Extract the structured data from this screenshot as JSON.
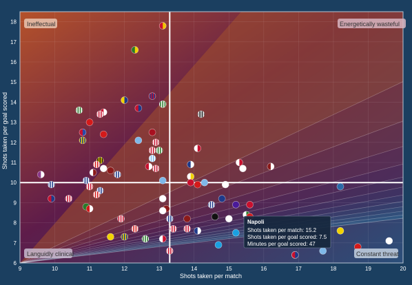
{
  "chart_data": {
    "type": "scatter",
    "xlabel": "Shots taken per match",
    "ylabel": "Shots taken per goal scored",
    "xlim": [
      9,
      20
    ],
    "ylim": [
      6,
      18.5
    ],
    "xticks": [
      9,
      10,
      11,
      12,
      13,
      14,
      15,
      16,
      17,
      18,
      19,
      20
    ],
    "yticks": [
      6,
      7,
      8,
      9,
      10,
      11,
      12,
      13,
      14,
      15,
      16,
      17,
      18
    ],
    "grid": true,
    "reference_lines": {
      "x": 13.3,
      "y": 10.0
    },
    "quadrant_labels": {
      "top_left": "Ineffectual",
      "top_right": "Energetically wasteful",
      "bottom_left": "Languidly clinical",
      "bottom_right": "Constant threat"
    },
    "tooltip": {
      "title": "Napoli",
      "lines": [
        "Shots taken per match: 15.2",
        "Shots taken per goal scored: 7.5",
        "Minutes per goal scored: 47"
      ],
      "x": 15.2,
      "y": 7.5
    },
    "points": [
      {
        "x": 13.1,
        "y": 17.8,
        "c1": "#c8102e",
        "c2": "#f2c300",
        "style": "split"
      },
      {
        "x": 12.3,
        "y": 16.6,
        "c1": "#2a7a2a",
        "c2": "#f2d200",
        "style": "split"
      },
      {
        "x": 12.8,
        "y": 14.3,
        "c1": "#c8102e",
        "c2": "#1e3a8a",
        "style": "stripes"
      },
      {
        "x": 12.0,
        "y": 14.1,
        "c1": "#f2d200",
        "c2": "#1e3a8a",
        "style": "split"
      },
      {
        "x": 13.1,
        "y": 13.9,
        "c1": "#ffffff",
        "c2": "#2a7a2a",
        "style": "stripes"
      },
      {
        "x": 12.4,
        "y": 13.7,
        "c1": "#c8102e",
        "c2": "#1e3a8a",
        "style": "split"
      },
      {
        "x": 10.7,
        "y": 13.6,
        "c1": "#2a7a2a",
        "c2": "#ffffff",
        "style": "stripes"
      },
      {
        "x": 11.4,
        "y": 13.5,
        "c1": "#c8102e",
        "c2": "#ffffff",
        "style": "split"
      },
      {
        "x": 11.3,
        "y": 13.4,
        "c1": "#c8102e",
        "c2": "#ffffff",
        "style": "stripes"
      },
      {
        "x": 14.2,
        "y": 13.4,
        "c1": "#111111",
        "c2": "#ffffff",
        "style": "stripes"
      },
      {
        "x": 11.0,
        "y": 13.0,
        "c1": "#d41a1a",
        "c2": "#d41a1a",
        "style": "solid"
      },
      {
        "x": 10.8,
        "y": 12.5,
        "c1": "#c8102e",
        "c2": "#2a4aa8",
        "style": "split"
      },
      {
        "x": 11.4,
        "y": 12.4,
        "c1": "#d41a1a",
        "c2": "#d41a1a",
        "style": "solid"
      },
      {
        "x": 12.8,
        "y": 12.5,
        "c1": "#a81020",
        "c2": "#a81020",
        "style": "solid"
      },
      {
        "x": 10.8,
        "y": 12.1,
        "c1": "#f2d200",
        "c2": "#1e3a8a",
        "style": "stripes"
      },
      {
        "x": 12.4,
        "y": 12.1,
        "c1": "#7fb8e8",
        "c2": "#7fb8e8",
        "style": "solid"
      },
      {
        "x": 12.9,
        "y": 12.0,
        "c1": "#c8102e",
        "c2": "#ffffff",
        "style": "stripes"
      },
      {
        "x": 12.8,
        "y": 11.6,
        "c1": "#c8102e",
        "c2": "#ffffff",
        "style": "stripes"
      },
      {
        "x": 13.0,
        "y": 11.6,
        "c1": "#2a7a2a",
        "c2": "#ffffff",
        "style": "stripes"
      },
      {
        "x": 12.8,
        "y": 11.2,
        "c1": "#7fb8e8",
        "c2": "#ffffff",
        "style": "stripes"
      },
      {
        "x": 14.1,
        "y": 11.7,
        "c1": "#ffffff",
        "c2": "#c8102e",
        "style": "split"
      },
      {
        "x": 11.3,
        "y": 11.1,
        "c1": "#f2d200",
        "c2": "#111111",
        "style": "stripes"
      },
      {
        "x": 11.2,
        "y": 10.9,
        "c1": "#d41a1a",
        "c2": "#ffffff",
        "style": "stripes"
      },
      {
        "x": 11.4,
        "y": 10.7,
        "c1": "#ffffff",
        "c2": "#ffffff",
        "style": "solid"
      },
      {
        "x": 15.3,
        "y": 11.0,
        "c1": "#ffffff",
        "c2": "#c8102e",
        "style": "split"
      },
      {
        "x": 13.9,
        "y": 10.9,
        "c1": "#1e3a8a",
        "c2": "#ffffff",
        "style": "split"
      },
      {
        "x": 12.7,
        "y": 10.8,
        "c1": "#c8102e",
        "c2": "#ffffff",
        "style": "split"
      },
      {
        "x": 16.2,
        "y": 10.8,
        "c1": "#8b1a1a",
        "c2": "#ffffff",
        "style": "split"
      },
      {
        "x": 15.4,
        "y": 10.7,
        "c1": "#ffffff",
        "c2": "#ffffff",
        "style": "solid"
      },
      {
        "x": 11.6,
        "y": 10.6,
        "c1": "#8b1a1a",
        "c2": "#8b1a1a",
        "style": "solid"
      },
      {
        "x": 12.9,
        "y": 10.7,
        "c1": "#c8102e",
        "c2": "#ffffff",
        "style": "stripes"
      },
      {
        "x": 11.1,
        "y": 10.5,
        "c1": "#ffffff",
        "c2": "#8b1a1a",
        "style": "split"
      },
      {
        "x": 11.8,
        "y": 10.4,
        "c1": "#1e3a8a",
        "c2": "#ffffff",
        "style": "stripes"
      },
      {
        "x": 9.6,
        "y": 10.4,
        "c1": "#8b3a8b",
        "c2": "#ffffff",
        "style": "split"
      },
      {
        "x": 13.9,
        "y": 10.3,
        "c1": "#ffffff",
        "c2": "#f2d200",
        "style": "split"
      },
      {
        "x": 10.9,
        "y": 10.1,
        "c1": "#1e3a8a",
        "c2": "#ffffff",
        "style": "stripes"
      },
      {
        "x": 13.1,
        "y": 10.1,
        "c1": "#7fb8e8",
        "c2": "#7fb8e8",
        "style": "solid"
      },
      {
        "x": 14.3,
        "y": 10.0,
        "c1": "#7fb8e8",
        "c2": "#7fb8e8",
        "style": "solid"
      },
      {
        "x": 13.9,
        "y": 10.0,
        "c1": "#c8102e",
        "c2": "#c8102e",
        "style": "solid"
      },
      {
        "x": 14.1,
        "y": 9.9,
        "c1": "#d41a1a",
        "c2": "#d41a1a",
        "style": "solid"
      },
      {
        "x": 14.9,
        "y": 9.9,
        "c1": "#ffffff",
        "c2": "#ffffff",
        "style": "solid"
      },
      {
        "x": 9.9,
        "y": 9.9,
        "c1": "#1e3a8a",
        "c2": "#ffffff",
        "style": "stripes"
      },
      {
        "x": 11.0,
        "y": 9.8,
        "c1": "#c8102e",
        "c2": "#ffffff",
        "style": "stripes"
      },
      {
        "x": 18.2,
        "y": 9.8,
        "c1": "#2a6aa8",
        "c2": "#2a6aa8",
        "style": "solid"
      },
      {
        "x": 11.3,
        "y": 9.6,
        "c1": "#1e3a8a",
        "c2": "#ffffff",
        "style": "stripes"
      },
      {
        "x": 11.2,
        "y": 9.4,
        "c1": "#d41a1a",
        "c2": "#ffffff",
        "style": "stripes"
      },
      {
        "x": 9.9,
        "y": 9.2,
        "c1": "#c8102e",
        "c2": "#1e3a8a",
        "style": "split"
      },
      {
        "x": 10.4,
        "y": 9.2,
        "c1": "#c8102e",
        "c2": "#ffffff",
        "style": "stripes"
      },
      {
        "x": 13.1,
        "y": 9.2,
        "c1": "#ffffff",
        "c2": "#ffffff",
        "style": "solid"
      },
      {
        "x": 14.8,
        "y": 9.2,
        "c1": "#1e3a8a",
        "c2": "#1e3a8a",
        "style": "solid"
      },
      {
        "x": 14.5,
        "y": 8.9,
        "c1": "#1e3a8a",
        "c2": "#ffffff",
        "style": "stripes"
      },
      {
        "x": 15.2,
        "y": 8.9,
        "c1": "#4a1a9a",
        "c2": "#4a1a9a",
        "style": "solid"
      },
      {
        "x": 15.6,
        "y": 8.9,
        "c1": "#c8102e",
        "c2": "#c8102e",
        "style": "solid"
      },
      {
        "x": 10.9,
        "y": 8.8,
        "c1": "#2a7a2a",
        "c2": "#2a7a2a",
        "style": "solid"
      },
      {
        "x": 11.0,
        "y": 8.7,
        "c1": "#d41a1a",
        "c2": "#ffffff",
        "style": "split"
      },
      {
        "x": 13.2,
        "y": 8.7,
        "c1": "#8b1a1a",
        "c2": "#8b1a1a",
        "style": "solid"
      },
      {
        "x": 13.1,
        "y": 8.6,
        "c1": "#ffffff",
        "c2": "#ffffff",
        "style": "solid"
      },
      {
        "x": 11.9,
        "y": 8.2,
        "c1": "#ffffff",
        "c2": "#c8102e",
        "style": "stripes"
      },
      {
        "x": 13.3,
        "y": 8.2,
        "c1": "#1e3a8a",
        "c2": "#ffffff",
        "style": "stripes"
      },
      {
        "x": 13.8,
        "y": 8.2,
        "c1": "#8b1a1a",
        "c2": "#8b1a1a",
        "style": "solid"
      },
      {
        "x": 14.6,
        "y": 8.3,
        "c1": "#111111",
        "c2": "#111111",
        "style": "solid"
      },
      {
        "x": 15.0,
        "y": 8.2,
        "c1": "#ffffff",
        "c2": "#ffffff",
        "style": "solid"
      },
      {
        "x": 15.5,
        "y": 8.4,
        "c1": "#ffffff",
        "c2": "#2a7a2a",
        "style": "split"
      },
      {
        "x": 15.6,
        "y": 8.3,
        "c1": "#d41a1a",
        "c2": "#d41a1a",
        "style": "solid"
      },
      {
        "x": 12.3,
        "y": 7.7,
        "c1": "#d41a1a",
        "c2": "#ffffff",
        "style": "stripes"
      },
      {
        "x": 13.4,
        "y": 7.7,
        "c1": "#c8102e",
        "c2": "#ffffff",
        "style": "stripes"
      },
      {
        "x": 13.8,
        "y": 7.7,
        "c1": "#c8102e",
        "c2": "#ffffff",
        "style": "stripes"
      },
      {
        "x": 14.1,
        "y": 7.6,
        "c1": "#1e3a8a",
        "c2": "#ffffff",
        "style": "split"
      },
      {
        "x": 15.2,
        "y": 7.5,
        "c1": "#1aa0e0",
        "c2": "#1aa0e0",
        "style": "solid"
      },
      {
        "x": 18.2,
        "y": 7.6,
        "c1": "#f2d200",
        "c2": "#f2d200",
        "style": "solid"
      },
      {
        "x": 11.6,
        "y": 7.3,
        "c1": "#f2d200",
        "c2": "#f2d200",
        "style": "solid"
      },
      {
        "x": 12.0,
        "y": 7.3,
        "c1": "#f2d200",
        "c2": "#1e3a8a",
        "style": "stripes"
      },
      {
        "x": 12.6,
        "y": 7.2,
        "c1": "#ffffff",
        "c2": "#2a7a2a",
        "style": "stripes"
      },
      {
        "x": 13.1,
        "y": 7.2,
        "c1": "#ffffff",
        "c2": "#c8102e",
        "style": "split"
      },
      {
        "x": 14.7,
        "y": 6.9,
        "c1": "#1aa0e0",
        "c2": "#1aa0e0",
        "style": "solid"
      },
      {
        "x": 19.6,
        "y": 7.1,
        "c1": "#ffffff",
        "c2": "#ffffff",
        "style": "solid"
      },
      {
        "x": 18.7,
        "y": 6.8,
        "c1": "#d41a1a",
        "c2": "#d41a1a",
        "style": "solid"
      },
      {
        "x": 13.3,
        "y": 6.6,
        "c1": "#c8102e",
        "c2": "#ffffff",
        "style": "stripes"
      },
      {
        "x": 16.9,
        "y": 6.4,
        "c1": "#8b1a1a",
        "c2": "#ffffff",
        "style": "stripes"
      },
      {
        "x": 17.7,
        "y": 6.6,
        "c1": "#7fb8e8",
        "c2": "#7fb8e8",
        "style": "solid"
      },
      {
        "x": 16.9,
        "y": 6.4,
        "c1": "#c8102e",
        "c2": "#1e3a8a",
        "style": "split"
      }
    ]
  }
}
